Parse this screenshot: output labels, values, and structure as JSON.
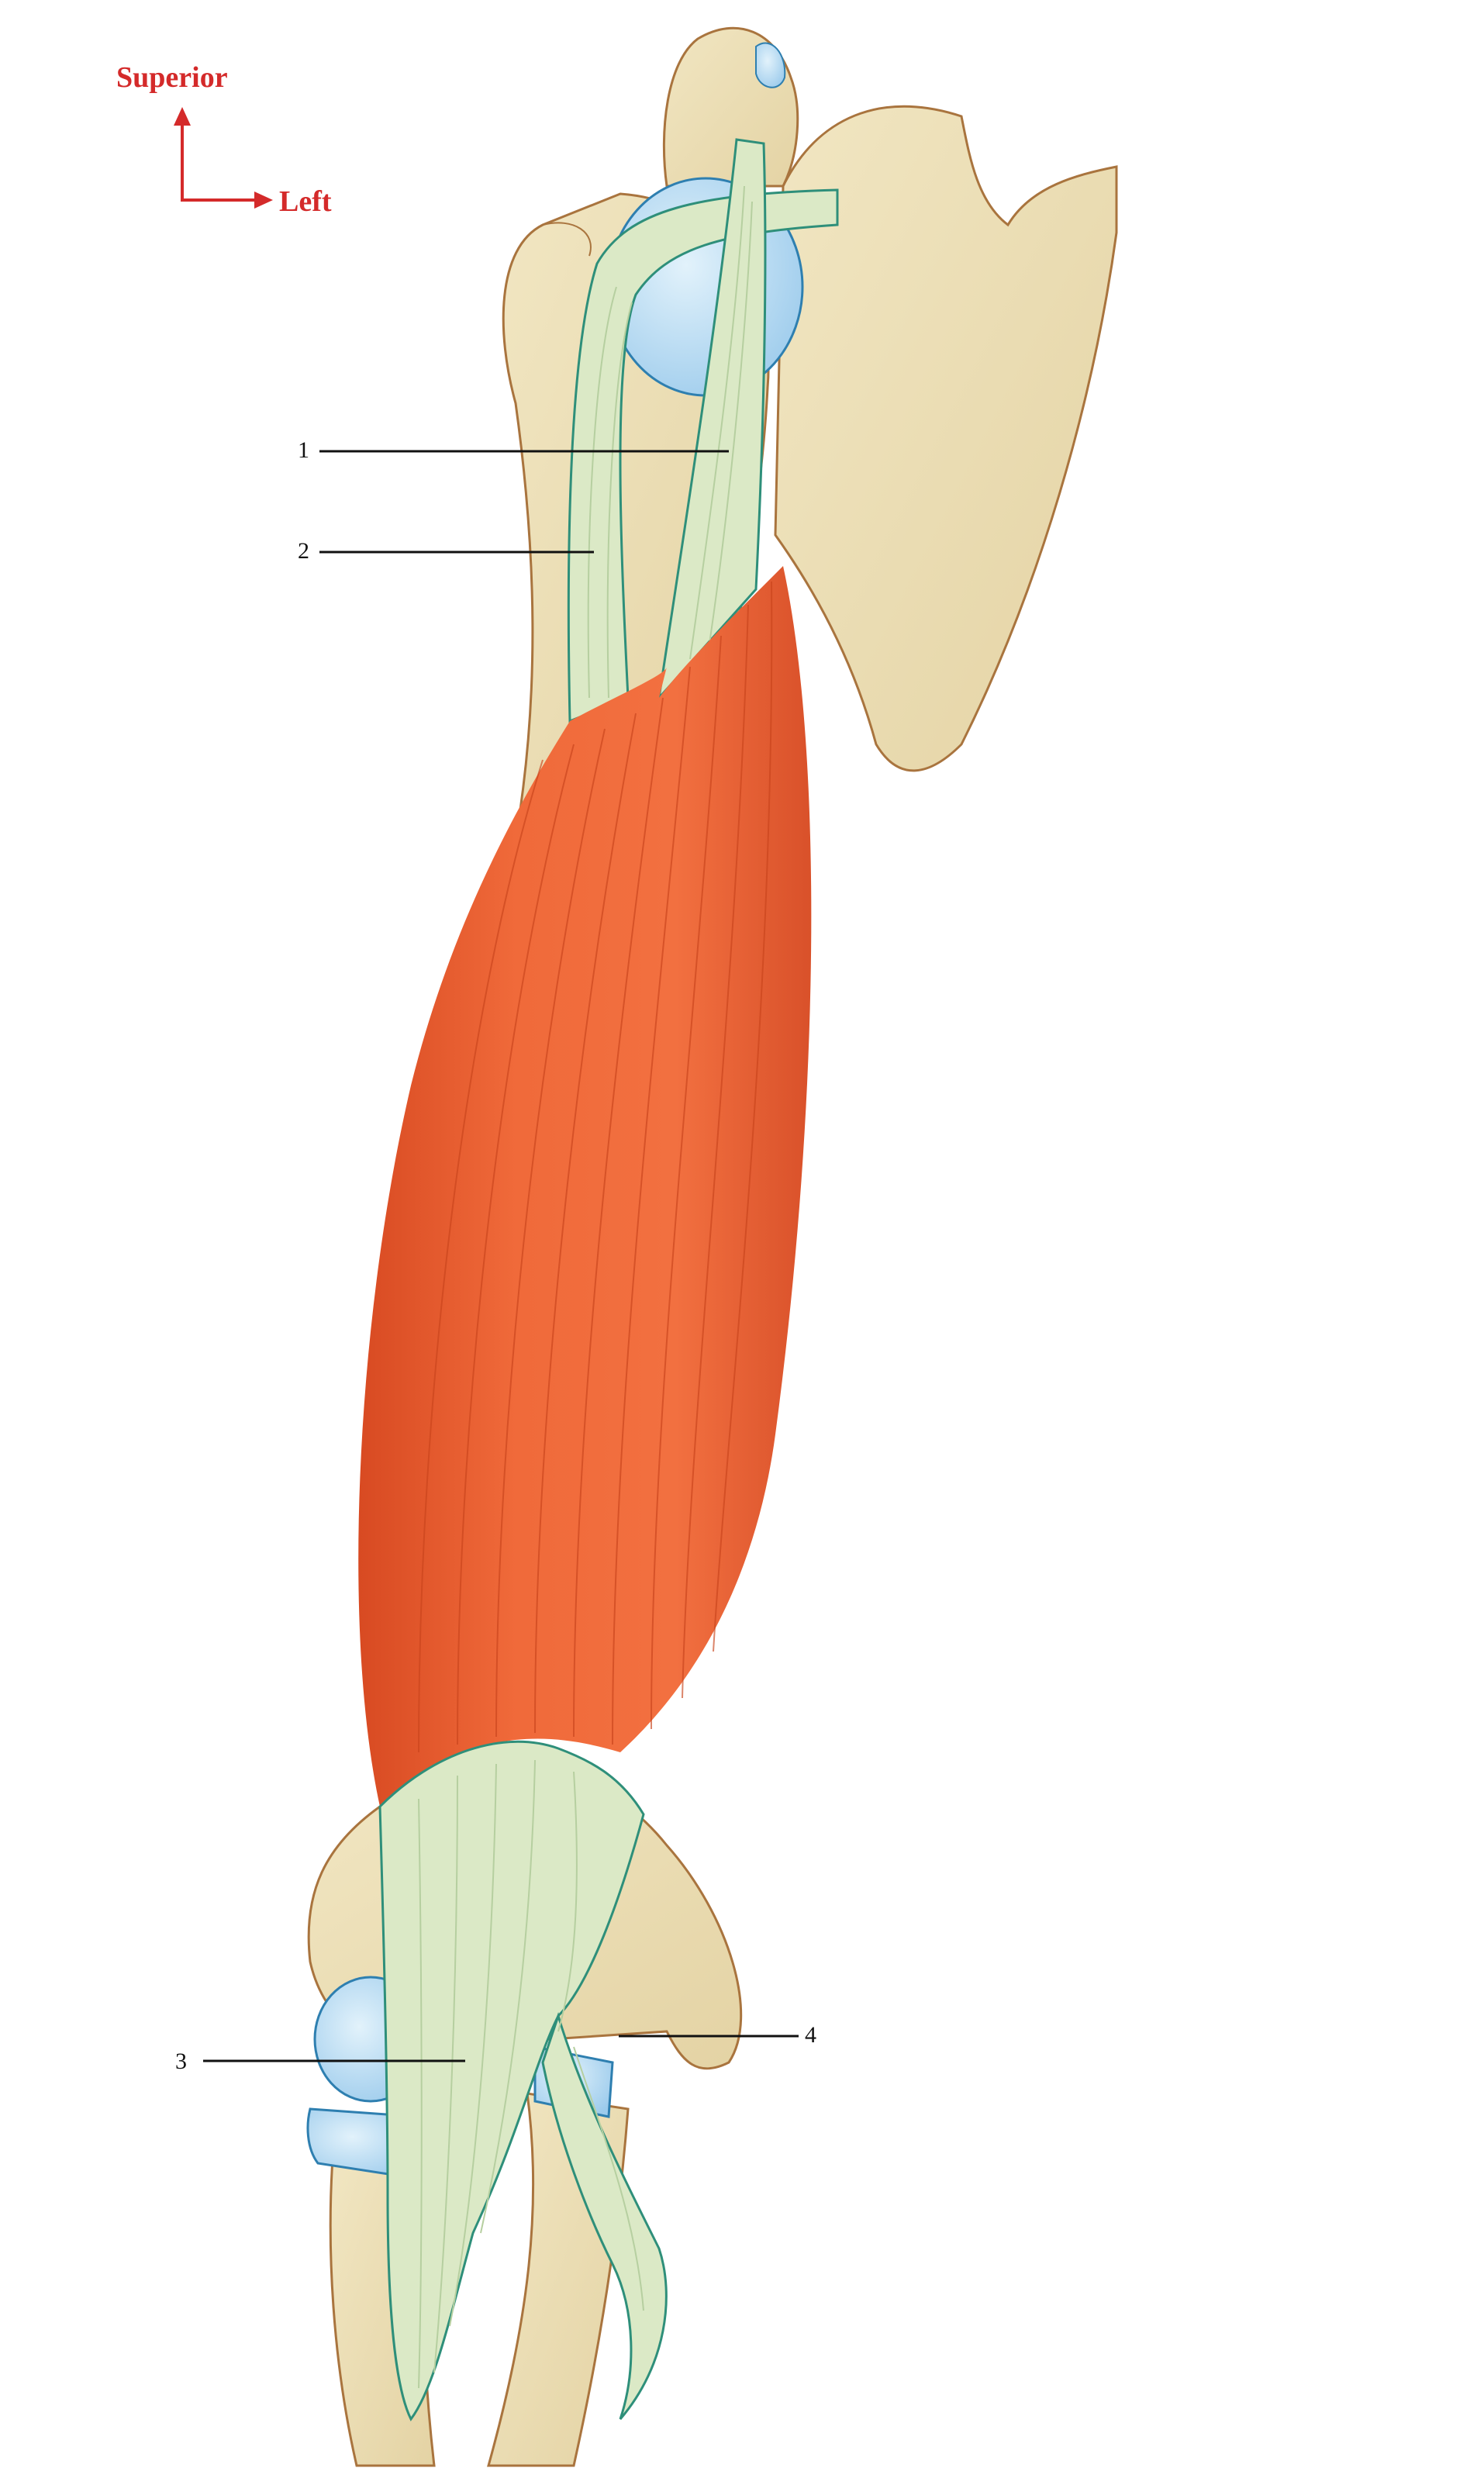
{
  "orientation": {
    "vertical_label": "Superior",
    "horizontal_label": "Left",
    "color": "#d42a2a"
  },
  "callouts": [
    {
      "number": "1"
    },
    {
      "number": "2"
    },
    {
      "number": "3"
    },
    {
      "number": "4"
    }
  ],
  "colors": {
    "bone": "#ece0b8",
    "bone_outline": "#a9743e",
    "cartilage": "#bfe0f5",
    "tendon": "#dbe9c6",
    "tendon_outline": "#2e8f7a",
    "muscle": "#ea5e2f",
    "muscle_dark": "#d54a22"
  }
}
